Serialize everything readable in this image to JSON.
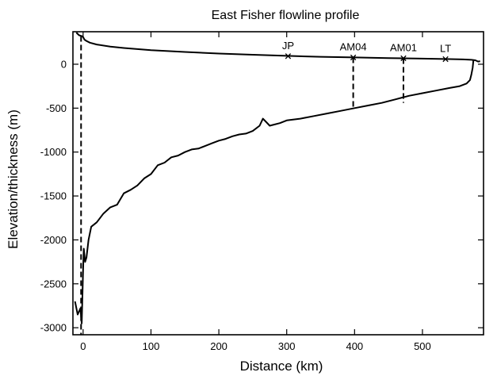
{
  "chart_data": {
    "type": "line",
    "title": "East Fisher flowline profile",
    "xlabel": "Distance (km)",
    "ylabel": "Elevation/thickness (m)",
    "xlim": [
      -15,
      590
    ],
    "ylim": [
      -3080,
      370
    ],
    "xticks": [
      0,
      100,
      200,
      300,
      400,
      500
    ],
    "yticks": [
      0,
      -500,
      -1000,
      -1500,
      -2000,
      -2500,
      -3000
    ],
    "grid": false,
    "legend": "none",
    "series": [
      {
        "role": "surface",
        "x": [
          -10,
          -6,
          -2,
          0,
          2,
          5,
          10,
          20,
          40,
          60,
          100,
          150,
          200,
          250,
          300,
          350,
          400,
          450,
          500,
          540,
          560,
          572,
          578,
          582,
          585
        ],
        "y": [
          360,
          330,
          320,
          310,
          280,
          265,
          245,
          225,
          200,
          185,
          160,
          140,
          122,
          108,
          95,
          85,
          77,
          70,
          64,
          58,
          55,
          50,
          45,
          30,
          35
        ]
      },
      {
        "role": "bed",
        "x": [
          -12,
          -8,
          -4,
          -2,
          0,
          1,
          2,
          3,
          5,
          8,
          12,
          20,
          30,
          40,
          50,
          60,
          70,
          80,
          90,
          100,
          110,
          120,
          130,
          140,
          150,
          160,
          170,
          180,
          190,
          200,
          210,
          220,
          230,
          240,
          250,
          260,
          265,
          270,
          275,
          280,
          290,
          300,
          320,
          340,
          360,
          380,
          400,
          420,
          440,
          460,
          480,
          500,
          520,
          540,
          555,
          565,
          570,
          572,
          574,
          575
        ],
        "y": [
          -2700,
          -2850,
          -2780,
          -2950,
          -2350,
          -2100,
          -2180,
          -2250,
          -2200,
          -2000,
          -1850,
          -1800,
          -1700,
          -1630,
          -1600,
          -1470,
          -1430,
          -1380,
          -1300,
          -1250,
          -1150,
          -1120,
          -1060,
          -1040,
          -1000,
          -970,
          -960,
          -930,
          -900,
          -870,
          -850,
          -820,
          -800,
          -790,
          -760,
          -700,
          -620,
          -660,
          -700,
          -690,
          -670,
          -640,
          -620,
          -590,
          -560,
          -530,
          -500,
          -470,
          -440,
          -400,
          -360,
          -330,
          -300,
          -270,
          -250,
          -220,
          -180,
          -120,
          -40,
          40
        ]
      }
    ],
    "vertical_lines": [
      {
        "x": -3,
        "y_from": 320,
        "y_to": -3080
      },
      {
        "x": 398,
        "y_from": 77,
        "y_to": -500
      },
      {
        "x": 472,
        "y_from": 68,
        "y_to": -440
      }
    ],
    "markers": [
      {
        "label": "JP",
        "x": 302,
        "y": 92
      },
      {
        "label": "AM04",
        "x": 398,
        "y": 77
      },
      {
        "label": "AM01",
        "x": 472,
        "y": 68
      },
      {
        "label": "LT",
        "x": 534,
        "y": 58
      }
    ]
  }
}
